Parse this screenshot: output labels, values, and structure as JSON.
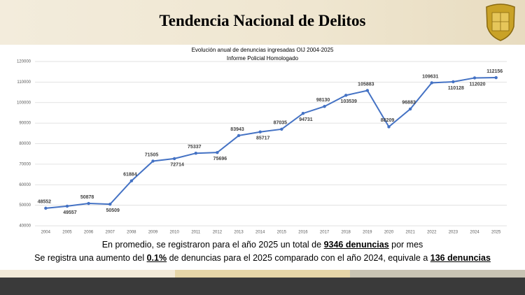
{
  "header": {
    "title": "Tendencia Nacional de Delitos"
  },
  "chart_data": {
    "type": "line",
    "title": "Evolución anual de denuncias ingresadas OIJ 2004-2025",
    "subtitle": "Informe Policial Homologado",
    "categories": [
      "2004",
      "2005",
      "2006",
      "2007",
      "2008",
      "2009",
      "2010",
      "2011",
      "2012",
      "2013",
      "2014",
      "2015",
      "2016",
      "2017",
      "2018",
      "2019",
      "2020",
      "2021",
      "2022",
      "2023",
      "2024",
      "2025"
    ],
    "values": [
      48552,
      49557,
      50878,
      50509,
      61884,
      71505,
      72714,
      75337,
      75696,
      83943,
      85717,
      87035,
      94731,
      98130,
      103539,
      105883,
      88209,
      96883,
      109631,
      110128,
      112020,
      112156
    ],
    "color": "#4472c4",
    "ylim": [
      40000,
      120000
    ],
    "yticks": [
      40000,
      50000,
      60000,
      70000,
      80000,
      90000,
      100000,
      110000,
      120000
    ],
    "grid": true
  },
  "notes": [
    [
      "En promedio, se registraron para el año 2025 un total de ",
      "9346 denuncias",
      " por mes"
    ],
    [
      "Se registra una aumento del ",
      "0.1%",
      " de denuncias para el 2025 comparado con el año 2024, equivale a ",
      "136 denuncias"
    ]
  ]
}
